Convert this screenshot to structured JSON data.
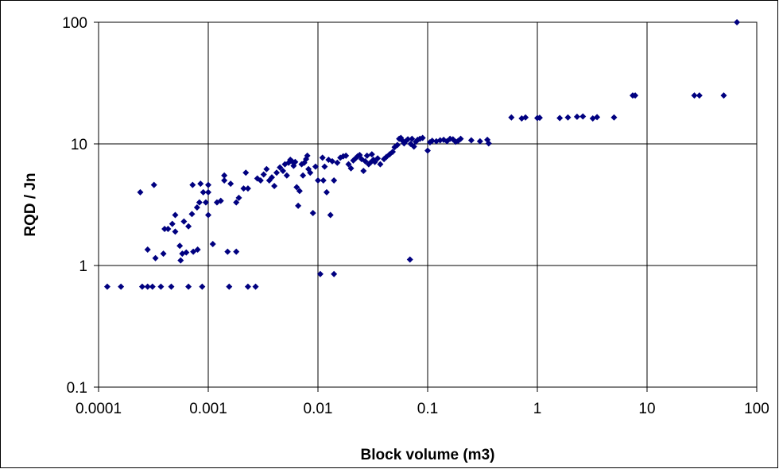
{
  "chart_data": {
    "type": "scatter",
    "title": "",
    "xlabel": "Block volume  (m3)",
    "ylabel": "RQD / Jn",
    "x_scale": "log",
    "y_scale": "log",
    "xlim": [
      0.0001,
      100
    ],
    "ylim": [
      0.1,
      100
    ],
    "x_ticks": [
      "0.0001",
      "0.001",
      "0.01",
      "0.1",
      "1",
      "10",
      "100"
    ],
    "y_ticks": [
      "100",
      "10",
      "1",
      "0.1"
    ],
    "grid": true,
    "legend": "none",
    "marker_color": "#000080",
    "series": [
      {
        "points": [
          [
            0.00012,
            0.67
          ],
          [
            0.00016,
            0.67
          ],
          [
            0.00025,
            0.67
          ],
          [
            0.00028,
            0.67
          ],
          [
            0.00031,
            0.67
          ],
          [
            0.00037,
            0.67
          ],
          [
            0.00046,
            0.67
          ],
          [
            0.00066,
            0.67
          ],
          [
            0.00088,
            0.67
          ],
          [
            0.00155,
            0.67
          ],
          [
            0.0023,
            0.67
          ],
          [
            0.0027,
            0.67
          ],
          [
            0.00024,
            4.0
          ],
          [
            0.00032,
            4.6
          ],
          [
            0.00028,
            1.35
          ],
          [
            0.00033,
            1.15
          ],
          [
            0.00039,
            1.25
          ],
          [
            0.0004,
            2.0
          ],
          [
            0.00043,
            2.0
          ],
          [
            0.00047,
            2.2
          ],
          [
            0.0005,
            1.9
          ],
          [
            0.0005,
            2.6
          ],
          [
            0.00055,
            1.45
          ],
          [
            0.00056,
            1.1
          ],
          [
            0.00058,
            1.25
          ],
          [
            0.0006,
            2.3
          ],
          [
            0.00063,
            1.28
          ],
          [
            0.00066,
            2.1
          ],
          [
            0.00071,
            2.65
          ],
          [
            0.00072,
            4.6
          ],
          [
            0.00073,
            1.3
          ],
          [
            0.00079,
            3.0
          ],
          [
            0.0008,
            1.35
          ],
          [
            0.00083,
            3.3
          ],
          [
            0.00085,
            4.7
          ],
          [
            0.0009,
            4.0
          ],
          [
            0.00095,
            3.3
          ],
          [
            0.001,
            4.6
          ],
          [
            0.001,
            4.0
          ],
          [
            0.001,
            2.6
          ],
          [
            0.0011,
            1.5
          ],
          [
            0.0012,
            3.3
          ],
          [
            0.0013,
            3.4
          ],
          [
            0.0014,
            5.0
          ],
          [
            0.0014,
            5.5
          ],
          [
            0.0015,
            1.3
          ],
          [
            0.0016,
            4.7
          ],
          [
            0.0018,
            1.3
          ],
          [
            0.0018,
            3.3
          ],
          [
            0.0019,
            3.6
          ],
          [
            0.0021,
            4.3
          ],
          [
            0.0022,
            5.8
          ],
          [
            0.0023,
            4.3
          ],
          [
            0.0028,
            5.2
          ],
          [
            0.003,
            5.0
          ],
          [
            0.0032,
            5.6
          ],
          [
            0.0034,
            6.2
          ],
          [
            0.0036,
            5.0
          ],
          [
            0.0038,
            5.3
          ],
          [
            0.004,
            4.5
          ],
          [
            0.0042,
            5.8
          ],
          [
            0.0045,
            6.4
          ],
          [
            0.0048,
            6.0
          ],
          [
            0.005,
            6.8
          ],
          [
            0.0052,
            5.5
          ],
          [
            0.0054,
            7.0
          ],
          [
            0.0056,
            7.4
          ],
          [
            0.0058,
            7.2
          ],
          [
            0.006,
            6.6
          ],
          [
            0.0062,
            7.1
          ],
          [
            0.0064,
            4.4
          ],
          [
            0.0066,
            3.1
          ],
          [
            0.0068,
            4.1
          ],
          [
            0.0071,
            6.8
          ],
          [
            0.0073,
            5.5
          ],
          [
            0.0075,
            7.0
          ],
          [
            0.0078,
            7.5
          ],
          [
            0.008,
            8.0
          ],
          [
            0.0082,
            6.2
          ],
          [
            0.0085,
            5.8
          ],
          [
            0.009,
            2.7
          ],
          [
            0.0095,
            6.5
          ],
          [
            0.01,
            5.0
          ],
          [
            0.0105,
            0.85
          ],
          [
            0.011,
            7.7
          ],
          [
            0.0112,
            5.0
          ],
          [
            0.0115,
            6.5
          ],
          [
            0.012,
            4.0
          ],
          [
            0.0125,
            7.4
          ],
          [
            0.013,
            2.6
          ],
          [
            0.0135,
            7.2
          ],
          [
            0.014,
            0.85
          ],
          [
            0.014,
            5.0
          ],
          [
            0.015,
            7.0
          ],
          [
            0.016,
            7.7
          ],
          [
            0.017,
            7.9
          ],
          [
            0.018,
            8.0
          ],
          [
            0.019,
            6.8
          ],
          [
            0.02,
            6.3
          ],
          [
            0.021,
            7.3
          ],
          [
            0.022,
            7.6
          ],
          [
            0.023,
            7.9
          ],
          [
            0.024,
            8.1
          ],
          [
            0.025,
            7.5
          ],
          [
            0.026,
            6.0
          ],
          [
            0.027,
            7.2
          ],
          [
            0.028,
            8.0
          ],
          [
            0.029,
            6.8
          ],
          [
            0.03,
            7.0
          ],
          [
            0.031,
            8.2
          ],
          [
            0.032,
            7.4
          ],
          [
            0.033,
            7.1
          ],
          [
            0.035,
            7.6
          ],
          [
            0.037,
            6.8
          ],
          [
            0.04,
            7.5
          ],
          [
            0.042,
            7.8
          ],
          [
            0.045,
            8.2
          ],
          [
            0.048,
            8.6
          ],
          [
            0.05,
            9.4
          ],
          [
            0.053,
            9.8
          ],
          [
            0.055,
            11.0
          ],
          [
            0.057,
            11.2
          ],
          [
            0.059,
            10.6
          ],
          [
            0.061,
            10.1
          ],
          [
            0.063,
            10.5
          ],
          [
            0.066,
            10.9
          ],
          [
            0.069,
            1.12
          ],
          [
            0.07,
            10.0
          ],
          [
            0.072,
            11.0
          ],
          [
            0.075,
            9.5
          ],
          [
            0.078,
            10.4
          ],
          [
            0.081,
            10.8
          ],
          [
            0.085,
            11.0
          ],
          [
            0.09,
            11.2
          ],
          [
            0.1,
            8.8
          ],
          [
            0.105,
            10.3
          ],
          [
            0.11,
            10.6
          ],
          [
            0.12,
            10.5
          ],
          [
            0.13,
            10.7
          ],
          [
            0.14,
            10.8
          ],
          [
            0.15,
            10.5
          ],
          [
            0.16,
            11.0
          ],
          [
            0.17,
            10.9
          ],
          [
            0.18,
            10.4
          ],
          [
            0.19,
            10.6
          ],
          [
            0.2,
            11.0
          ],
          [
            0.25,
            10.7
          ],
          [
            0.3,
            10.5
          ],
          [
            0.35,
            10.8
          ],
          [
            0.36,
            10.1
          ],
          [
            0.58,
            16.5
          ],
          [
            0.72,
            16.2
          ],
          [
            0.78,
            16.5
          ],
          [
            1.0,
            16.3
          ],
          [
            1.05,
            16.4
          ],
          [
            1.6,
            16.3
          ],
          [
            1.9,
            16.5
          ],
          [
            2.3,
            16.7
          ],
          [
            2.6,
            16.8
          ],
          [
            3.2,
            16.2
          ],
          [
            3.5,
            16.6
          ],
          [
            5.0,
            16.5
          ],
          [
            7.4,
            25
          ],
          [
            7.8,
            25
          ],
          [
            27,
            25
          ],
          [
            30,
            25
          ],
          [
            50,
            25
          ],
          [
            66,
            100
          ]
        ]
      }
    ]
  }
}
